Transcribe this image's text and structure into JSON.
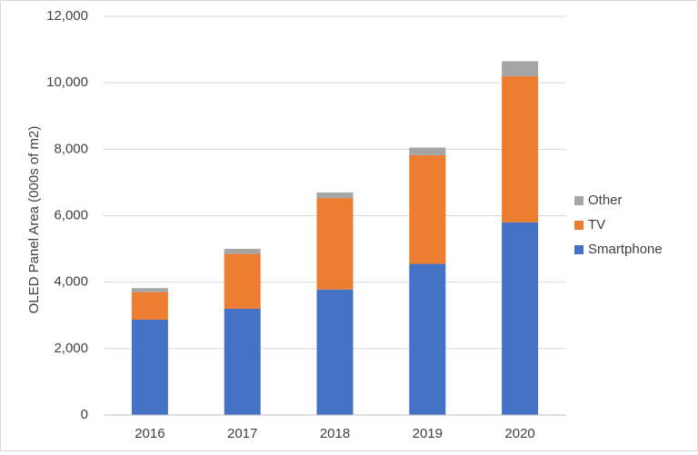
{
  "chart_data": {
    "type": "bar",
    "stacked": true,
    "categories": [
      "2016",
      "2017",
      "2018",
      "2019",
      "2020"
    ],
    "series": [
      {
        "name": "Smartphone",
        "color": "#4472C4",
        "values": [
          2870,
          3200,
          3780,
          4550,
          5800
        ]
      },
      {
        "name": "TV",
        "color": "#ED7D31",
        "values": [
          830,
          1650,
          2750,
          3270,
          4400
        ]
      },
      {
        "name": "Other",
        "color": "#A5A5A5",
        "values": [
          120,
          150,
          170,
          230,
          450
        ]
      }
    ],
    "title": "",
    "xlabel": "",
    "ylabel": "OLED Panel Area (000s of m2)",
    "ylim": [
      0,
      12000
    ],
    "yticks": [
      0,
      2000,
      4000,
      6000,
      8000,
      10000,
      12000
    ],
    "ytick_labels": [
      "0",
      "2,000",
      "4,000",
      "6,000",
      "8,000",
      "10,000",
      "12,000"
    ],
    "grid": true,
    "legend_position": "right",
    "legend_order": [
      "Other",
      "TV",
      "Smartphone"
    ]
  }
}
